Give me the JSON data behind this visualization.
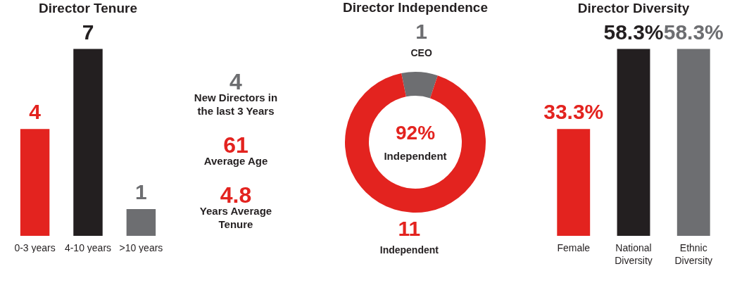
{
  "chart_data": [
    {
      "type": "bar",
      "title": "Director Tenure",
      "categories": [
        "0-3 years",
        "4-10 years",
        ">10 years"
      ],
      "values": [
        4,
        7,
        1
      ],
      "colors": [
        "#e3231f",
        "#231f20",
        "#6d6e71"
      ],
      "data_labels": true
    },
    {
      "type": "other",
      "annotations": [
        "4",
        "New Directors in the last 3 Years",
        "61",
        "Average Age",
        "4.8",
        "Years Average Tenure"
      ]
    },
    {
      "type": "donut",
      "title": "Director Independence",
      "categories": [
        "CEO",
        "Independent"
      ],
      "values": [
        1,
        11
      ],
      "colors": [
        "#6d6e71",
        "#e3231f"
      ],
      "data_labels": true,
      "annotations": [
        "92%",
        "Independent"
      ]
    },
    {
      "type": "bar",
      "title": "Director Diversity",
      "categories": [
        "Female",
        "National Diversity",
        "Ethnic Diversity"
      ],
      "values": [
        33.3,
        58.3,
        58.3
      ],
      "colors": [
        "#e3231f",
        "#231f20",
        "#6d6e71"
      ],
      "value_labels": [
        "33.3%",
        "58.3%",
        "58.3%"
      ]
    }
  ]
}
